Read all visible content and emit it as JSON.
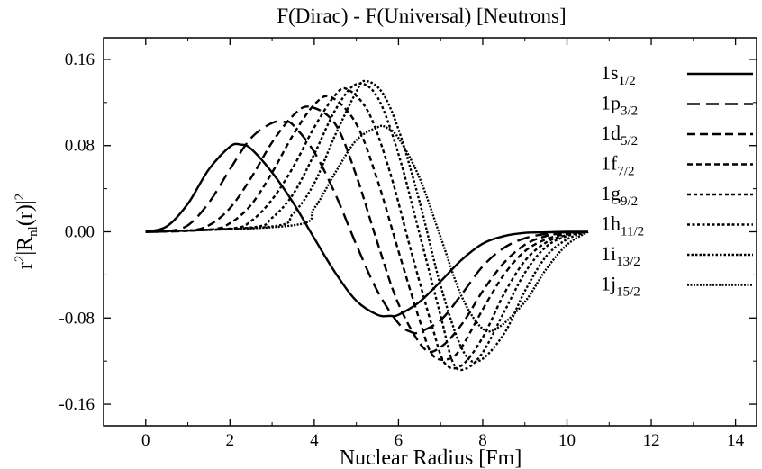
{
  "chart_data": {
    "type": "line",
    "title": "F(Dirac) - F(Universal) [Neutrons]",
    "xlabel": "Nuclear Radius [Fm]",
    "ylabel": "r²|R_nl(r)|²",
    "xlim": [
      -1,
      14.5
    ],
    "ylim": [
      -0.18,
      0.18
    ],
    "xticks": [
      0,
      2,
      4,
      6,
      8,
      10,
      12,
      14
    ],
    "xtick_labels": [
      "0",
      "2",
      "4",
      "6",
      "8",
      "10",
      "12",
      "14"
    ],
    "yticks": [
      -0.16,
      -0.08,
      0.0,
      0.08,
      0.16
    ],
    "ytick_labels": [
      "-0.16",
      "-0.08",
      "0.00",
      "0.08",
      "0.16"
    ],
    "grid": false,
    "legend_position": "top-right",
    "series": [
      {
        "base": "1s",
        "sub": "1/2",
        "dash": "",
        "x": [
          0,
          0.5,
          1,
          1.5,
          2,
          2.25,
          2.5,
          3,
          3.5,
          4,
          4.5,
          5,
          5.5,
          5.8,
          6,
          6.5,
          7,
          7.5,
          8,
          8.5,
          9,
          9.5,
          10,
          10.5
        ],
        "y": [
          0,
          0.005,
          0.026,
          0.058,
          0.079,
          0.081,
          0.077,
          0.055,
          0.027,
          -0.006,
          -0.038,
          -0.064,
          -0.077,
          -0.078,
          -0.077,
          -0.065,
          -0.046,
          -0.026,
          -0.011,
          -0.004,
          -0.001,
          -0.0005,
          0,
          0
        ]
      },
      {
        "base": "1p",
        "sub": "3/2",
        "dash": "14,7",
        "x": [
          0,
          0.5,
          1,
          1.5,
          2,
          2.5,
          3,
          3.3,
          3.5,
          4,
          4.5,
          5,
          5.5,
          6,
          6.3,
          6.5,
          7,
          7.5,
          8,
          8.5,
          9,
          9.5,
          10,
          10.5
        ],
        "y": [
          0,
          0.0005,
          0.006,
          0.027,
          0.058,
          0.087,
          0.101,
          0.102,
          0.099,
          0.074,
          0.035,
          -0.012,
          -0.055,
          -0.085,
          -0.093,
          -0.093,
          -0.082,
          -0.058,
          -0.032,
          -0.015,
          -0.006,
          -0.002,
          -0.0005,
          0
        ]
      },
      {
        "base": "1d",
        "sub": "5/2",
        "dash": "9,5",
        "x": [
          0,
          1,
          1.5,
          2,
          2.5,
          3,
          3.5,
          3.9,
          4.5,
          5,
          5.5,
          6,
          6.6,
          7,
          7.5,
          8,
          8.5,
          9,
          9.5,
          10,
          10.5
        ],
        "y": [
          0,
          0.001,
          0.006,
          0.022,
          0.05,
          0.083,
          0.108,
          0.116,
          0.1,
          0.052,
          -0.01,
          -0.067,
          -0.108,
          -0.107,
          -0.086,
          -0.055,
          -0.029,
          -0.012,
          -0.004,
          -0.001,
          0
        ]
      },
      {
        "base": "1f",
        "sub": "7/2",
        "dash": "6,4",
        "x": [
          0,
          1.5,
          2,
          2.5,
          3,
          3.5,
          4,
          4.4,
          5,
          5.5,
          6,
          6.5,
          6.8,
          7.2,
          7.5,
          8,
          8.5,
          9,
          9.5,
          10,
          10.5
        ],
        "y": [
          0,
          0.002,
          0.008,
          0.025,
          0.055,
          0.09,
          0.118,
          0.125,
          0.1,
          0.048,
          -0.018,
          -0.082,
          -0.114,
          -0.118,
          -0.107,
          -0.072,
          -0.04,
          -0.018,
          -0.007,
          -0.002,
          0
        ]
      },
      {
        "base": "1g",
        "sub": "9/2",
        "dash": "4,3",
        "x": [
          0,
          2,
          2.5,
          3,
          3.5,
          4,
          4.5,
          4.8,
          5.3,
          5.8,
          6.3,
          6.8,
          7.1,
          7.5,
          8,
          8.5,
          9,
          9.5,
          10,
          10.5
        ],
        "y": [
          0,
          0.003,
          0.01,
          0.03,
          0.06,
          0.097,
          0.127,
          0.132,
          0.11,
          0.055,
          -0.018,
          -0.088,
          -0.122,
          -0.124,
          -0.098,
          -0.058,
          -0.027,
          -0.01,
          -0.003,
          0
        ]
      },
      {
        "base": "1h",
        "sub": "11/2",
        "dash": "3,2.5",
        "x": [
          0,
          2.5,
          3,
          3.5,
          4,
          4.5,
          5,
          5.5,
          6,
          6.5,
          7,
          7.3,
          7.6,
          8,
          8.5,
          9,
          9.5,
          10,
          10.5
        ],
        "y": [
          0,
          0.004,
          0.013,
          0.035,
          0.072,
          0.113,
          0.137,
          0.125,
          0.072,
          -0.002,
          -0.078,
          -0.122,
          -0.127,
          -0.112,
          -0.075,
          -0.038,
          -0.014,
          -0.004,
          0
        ]
      },
      {
        "base": "1i",
        "sub": "13/2",
        "dash": "2.5,2",
        "x": [
          0,
          3,
          3.5,
          4,
          4.5,
          5,
          5.2,
          5.6,
          6,
          6.5,
          7,
          7.5,
          7.9,
          8.5,
          9,
          9.5,
          10,
          10.5
        ],
        "y": [
          0,
          0.005,
          0.017,
          0.045,
          0.09,
          0.13,
          0.14,
          0.13,
          0.095,
          0.028,
          -0.05,
          -0.108,
          -0.12,
          -0.095,
          -0.055,
          -0.023,
          -0.007,
          0
        ]
      },
      {
        "base": "1j",
        "sub": "15/2",
        "dash": "2,1.5",
        "x": [
          0,
          3.5,
          4,
          4.5,
          5,
          5.5,
          5.7,
          6,
          6.5,
          7,
          7.5,
          8,
          8.4,
          9,
          9.5,
          10,
          10.5
        ],
        "y": [
          0,
          0.006,
          0.022,
          0.055,
          0.085,
          0.097,
          0.097,
          0.087,
          0.05,
          -0.005,
          -0.06,
          -0.09,
          -0.088,
          -0.065,
          -0.035,
          -0.012,
          0
        ]
      }
    ]
  }
}
